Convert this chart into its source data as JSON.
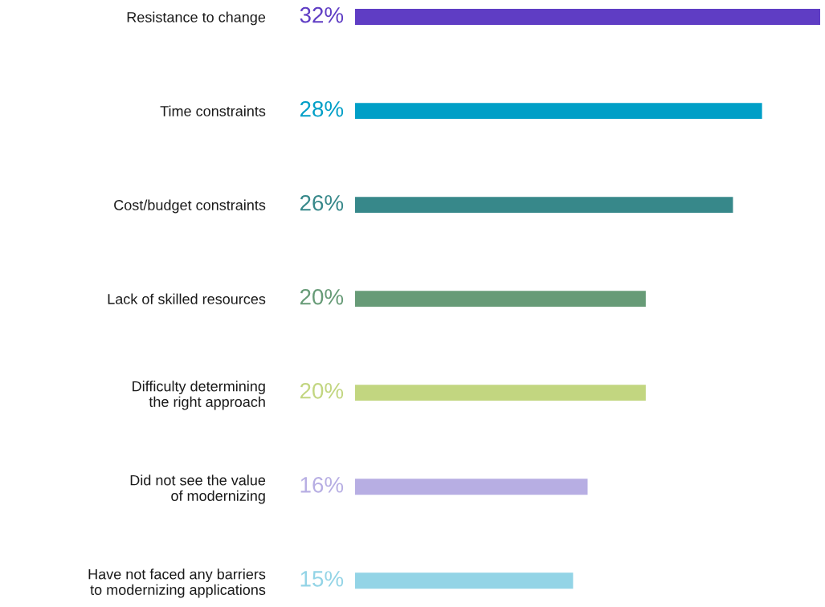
{
  "chart_data": {
    "type": "bar",
    "orientation": "horizontal",
    "categories": [
      "Resistance to change",
      "Time constraints",
      "Cost/budget constraints",
      "Lack of skilled resources",
      "Difficulty determining\nthe right approach",
      "Did not see the value\nof modernizing",
      "Have not faced any barriers\nto modernizing applications"
    ],
    "values": [
      32,
      28,
      26,
      20,
      20,
      16,
      15
    ],
    "value_labels": [
      "32%",
      "28%",
      "26%",
      "20%",
      "20%",
      "16%",
      "15%"
    ],
    "colors": [
      "#5f3dc4",
      "#009fc7",
      "#37888a",
      "#679b77",
      "#c2d680",
      "#b7aee3",
      "#93d4e6"
    ],
    "xlim": [
      0,
      32
    ],
    "tick_labels": "y",
    "grid": false,
    "legend": false
  }
}
